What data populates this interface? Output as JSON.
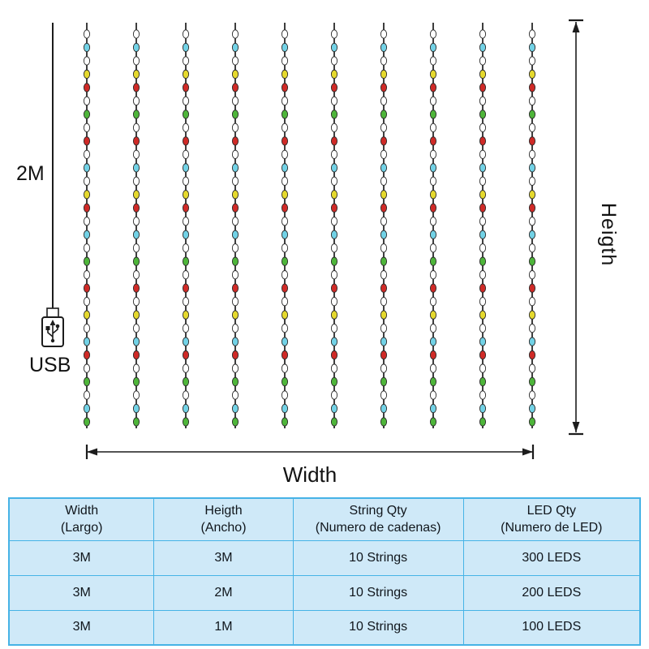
{
  "diagram": {
    "labels": {
      "cable_length": "2M",
      "usb": "USB",
      "height": "Heigth",
      "width": "Width"
    },
    "strings": {
      "count": 10,
      "bulbs_per_string": 30,
      "pattern": [
        "white",
        "cyan",
        "white",
        "yellow",
        "red",
        "white",
        "green",
        "white",
        "red",
        "white",
        "cyan",
        "white",
        "yellow",
        "red",
        "white",
        "cyan",
        "white",
        "green",
        "white",
        "red",
        "white",
        "yellow",
        "white",
        "cyan",
        "red",
        "white",
        "green",
        "white",
        "cyan",
        "green"
      ],
      "colors": {
        "white": "#ffffff",
        "cyan": "#72d2e6",
        "red": "#cf2a27",
        "yellow": "#e5d92e",
        "green": "#4eb53a",
        "wire": "#1c1c1c"
      }
    }
  },
  "table": {
    "colors": {
      "background": "#cfe9f8",
      "border": "#46b3e6",
      "text": "#10161c"
    },
    "headers": [
      {
        "line1": "Width",
        "line2": "(Largo)"
      },
      {
        "line1": "Heigth",
        "line2": "(Ancho)"
      },
      {
        "line1": "String Qty",
        "line2": "(Numero de cadenas)"
      },
      {
        "line1": "LED Qty",
        "line2": "(Numero de LED)"
      }
    ],
    "rows": [
      [
        "3M",
        "3M",
        "10 Strings",
        "300 LEDS"
      ],
      [
        "3M",
        "2M",
        "10 Strings",
        "200 LEDS"
      ],
      [
        "3M",
        "1M",
        "10 Strings",
        "100 LEDS"
      ]
    ]
  }
}
